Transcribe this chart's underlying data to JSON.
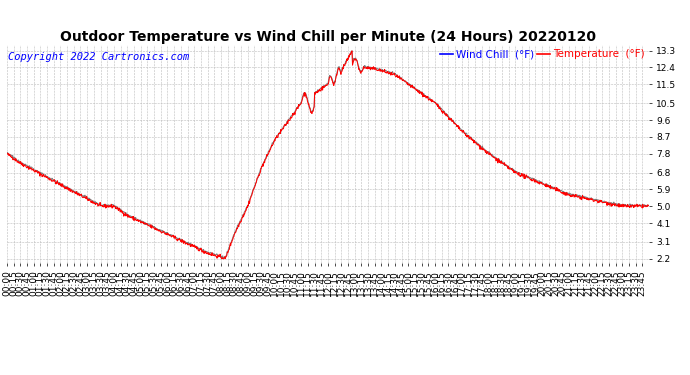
{
  "title": "Outdoor Temperature vs Wind Chill per Minute (24 Hours) 20220120",
  "copyright": "Copyright 2022 Cartronics.com",
  "legend_wind_chill": "Wind Chill  (°F)",
  "legend_temperature": "Temperature  (°F)",
  "wind_chill_color": "red",
  "temperature_color": "gray",
  "background_color": "white",
  "grid_color": "#bbbbbb",
  "yticks": [
    2.2,
    3.1,
    4.1,
    5.0,
    5.9,
    6.8,
    7.8,
    8.7,
    9.6,
    10.5,
    11.5,
    12.4,
    13.3
  ],
  "ylim": [
    2.0,
    13.6
  ],
  "total_minutes": 1440,
  "title_fontsize": 10,
  "axis_fontsize": 6.5,
  "copyright_fontsize": 7.5
}
